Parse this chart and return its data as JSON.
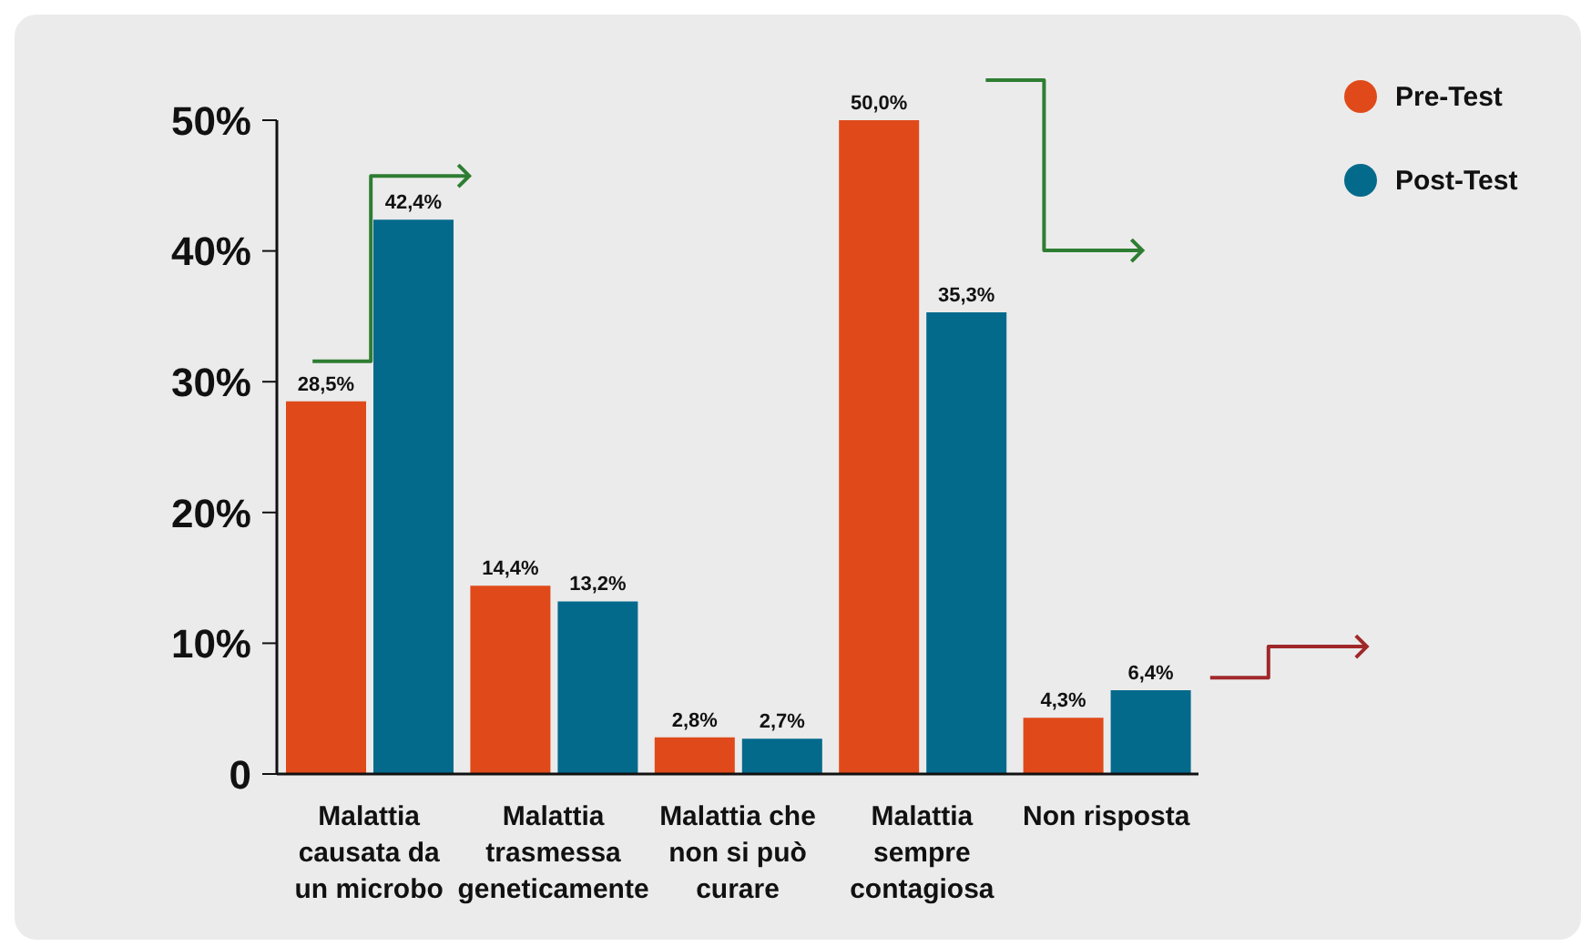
{
  "chart_data": {
    "type": "bar",
    "categories": [
      "Malattia\ncausata da\nun microbo",
      "Malattia\ntrasmessa\ngeneticamente",
      "Malattia che\nnon si può\ncurare",
      "Malattia\nsempre\ncontagiosa",
      "Non risposta"
    ],
    "series": [
      {
        "name": "Pre-Test",
        "color": "#e04a1a",
        "values": [
          28.5,
          14.4,
          2.8,
          50.0,
          4.3
        ],
        "value_labels": [
          "28,5%",
          "14,4%",
          "2,8%",
          "50,0%",
          "4,3%"
        ]
      },
      {
        "name": "Post-Test",
        "color": "#046a8c",
        "values": [
          42.4,
          13.2,
          2.7,
          35.3,
          6.4
        ],
        "value_labels": [
          "42,4%",
          "13,2%",
          "2,7%",
          "35,3%",
          "6,4%"
        ]
      }
    ],
    "ylim": [
      0,
      50
    ],
    "yticks": [
      {
        "value": 0,
        "label": "0"
      },
      {
        "value": 10,
        "label": "10%"
      },
      {
        "value": 20,
        "label": "20%"
      },
      {
        "value": 30,
        "label": "30%"
      },
      {
        "value": 40,
        "label": "40%"
      },
      {
        "value": 50,
        "label": "50%"
      }
    ],
    "grid": false,
    "legend": "top right"
  }
}
